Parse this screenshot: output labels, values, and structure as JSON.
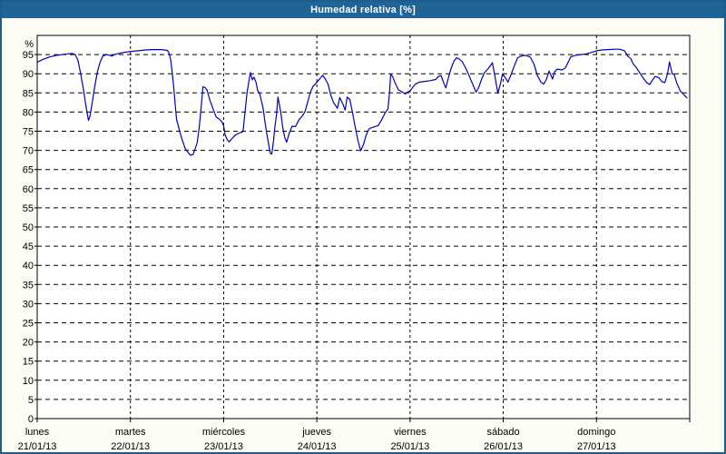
{
  "window": {
    "title": "Humedad relativa [%]"
  },
  "colors": {
    "titlebar_bg": "#1f6497",
    "titlebar_text": "#ffffff",
    "window_border": "#1d5c8c",
    "page_bg": "#fcfcf4",
    "plot_bg": "#fffffd",
    "grid": "#000000",
    "axis": "#000000",
    "line": "#0000b6"
  },
  "chart_data": {
    "type": "line",
    "title": "Humedad relativa [%]",
    "y_unit_label": "%",
    "ylim": [
      0,
      100
    ],
    "ytick_step": 5,
    "ytick_labels": [
      "0",
      "5",
      "10",
      "15",
      "20",
      "25",
      "30",
      "35",
      "40",
      "45",
      "50",
      "55",
      "60",
      "65",
      "70",
      "75",
      "80",
      "85",
      "90",
      "95"
    ],
    "grid": "dashed",
    "legend": "none",
    "x_hours_total": 168,
    "hours_per_day": 24,
    "x_days": [
      {
        "name": "lunes",
        "date": "21/01/13"
      },
      {
        "name": "martes",
        "date": "22/01/13"
      },
      {
        "name": "miércoles",
        "date": "23/01/13"
      },
      {
        "name": "jueves",
        "date": "24/01/13"
      },
      {
        "name": "viernes",
        "date": "25/01/13"
      },
      {
        "name": "sábado",
        "date": "26/01/13"
      },
      {
        "name": "domingo",
        "date": "27/01/13"
      }
    ],
    "series": [
      {
        "name": "Humedad relativa",
        "color": "#0000b6",
        "points": [
          [
            0,
            93.0
          ],
          [
            1.6,
            93.8
          ],
          [
            3.3,
            94.4
          ],
          [
            5.1,
            94.8
          ],
          [
            7,
            95.1
          ],
          [
            9,
            95.3
          ],
          [
            9.8,
            95.0
          ],
          [
            10.5,
            93.5
          ],
          [
            11.2,
            90.0
          ],
          [
            11.9,
            86.0
          ],
          [
            12.4,
            82.5
          ],
          [
            12.9,
            79.5
          ],
          [
            13.2,
            77.8
          ],
          [
            13.6,
            79.0
          ],
          [
            14.1,
            82.0
          ],
          [
            14.8,
            86.5
          ],
          [
            15.5,
            90.5
          ],
          [
            16.2,
            93.0
          ],
          [
            16.9,
            94.6
          ],
          [
            17.8,
            95.0
          ],
          [
            18.7,
            94.8
          ],
          [
            19.2,
            94.6
          ],
          [
            19.9,
            95.0
          ],
          [
            21,
            95.3
          ],
          [
            22.5,
            95.6
          ],
          [
            24,
            95.8
          ],
          [
            26,
            96.0
          ],
          [
            28,
            96.2
          ],
          [
            30,
            96.3
          ],
          [
            32,
            96.3
          ],
          [
            33.5,
            96.1
          ],
          [
            33.9,
            95.5
          ],
          [
            34.4,
            93.5
          ],
          [
            34.8,
            90.0
          ],
          [
            35.2,
            86.0
          ],
          [
            35.6,
            81.0
          ],
          [
            35.9,
            78.0
          ],
          [
            36.3,
            76.5
          ],
          [
            36.8,
            74.5
          ],
          [
            37.4,
            72.5
          ],
          [
            38.1,
            70.5
          ],
          [
            38.8,
            69.5
          ],
          [
            39.5,
            68.7
          ],
          [
            40.2,
            69.0
          ],
          [
            41.2,
            72.0
          ],
          [
            41.7,
            76.0
          ],
          [
            42.1,
            80.0
          ],
          [
            42.4,
            83.5
          ],
          [
            42.7,
            86.6
          ],
          [
            43.2,
            86.4
          ],
          [
            43.7,
            85.8
          ],
          [
            44.5,
            83.0
          ],
          [
            45.4,
            80.5
          ],
          [
            46.1,
            78.7
          ],
          [
            46.8,
            78.2
          ],
          [
            47.5,
            77.5
          ],
          [
            48,
            76.5
          ],
          [
            48.4,
            74.0
          ],
          [
            48.9,
            72.8
          ],
          [
            49.4,
            72.2
          ],
          [
            50.1,
            73.0
          ],
          [
            51,
            74.0
          ],
          [
            52,
            74.5
          ],
          [
            53,
            74.9
          ],
          [
            54,
            84.8
          ],
          [
            54.5,
            88.0
          ],
          [
            54.9,
            90.3
          ],
          [
            55.4,
            88.4
          ],
          [
            55.8,
            89.1
          ],
          [
            56.3,
            87.9
          ],
          [
            56.8,
            85.5
          ],
          [
            57.3,
            84.8
          ],
          [
            58.2,
            80.8
          ],
          [
            58.6,
            77.7
          ],
          [
            59.1,
            74.4
          ],
          [
            59.6,
            71.5
          ],
          [
            60,
            69.3
          ],
          [
            60.4,
            69.0
          ],
          [
            60.8,
            72.1
          ],
          [
            61.2,
            76.1
          ],
          [
            61.6,
            79.2
          ],
          [
            62,
            83.9
          ],
          [
            62.7,
            80.1
          ],
          [
            63.2,
            76.1
          ],
          [
            63.7,
            73.5
          ],
          [
            64.2,
            72.1
          ],
          [
            64.9,
            74.5
          ],
          [
            65.6,
            76.3
          ],
          [
            66.5,
            76.2
          ],
          [
            67.4,
            78.0
          ],
          [
            68.2,
            78.9
          ],
          [
            68.9,
            80.0
          ],
          [
            69.6,
            82.5
          ],
          [
            70.3,
            85.1
          ],
          [
            71,
            86.7
          ],
          [
            71.7,
            87.4
          ],
          [
            72,
            87.8
          ],
          [
            72.7,
            88.6
          ],
          [
            73.5,
            89.6
          ],
          [
            74.2,
            88.6
          ],
          [
            74.9,
            87.2
          ],
          [
            75.6,
            84.4
          ],
          [
            76.3,
            82.5
          ],
          [
            77.3,
            81.0
          ],
          [
            77.9,
            83.8
          ],
          [
            78.6,
            82.3
          ],
          [
            79.3,
            80.5
          ],
          [
            79.8,
            83.9
          ],
          [
            80.5,
            83.3
          ],
          [
            81.2,
            79.8
          ],
          [
            81.9,
            76.0
          ],
          [
            82.6,
            72.5
          ],
          [
            83.3,
            69.9
          ],
          [
            84,
            71.5
          ],
          [
            84.7,
            74.0
          ],
          [
            85.4,
            75.6
          ],
          [
            86.1,
            75.9
          ],
          [
            87,
            76.2
          ],
          [
            87.8,
            76.5
          ],
          [
            88.7,
            78.0
          ],
          [
            89.6,
            79.8
          ],
          [
            90.3,
            80.8
          ],
          [
            90.7,
            85.0
          ],
          [
            91,
            89.8
          ],
          [
            91.5,
            89.3
          ],
          [
            92.2,
            87.5
          ],
          [
            93,
            85.8
          ],
          [
            93.9,
            85.3
          ],
          [
            94.8,
            84.7
          ],
          [
            95.5,
            85.3
          ],
          [
            96,
            85.5
          ],
          [
            96.7,
            86.5
          ],
          [
            97.4,
            87.3
          ],
          [
            98.4,
            87.8
          ],
          [
            99.8,
            88.0
          ],
          [
            101.2,
            88.2
          ],
          [
            102.6,
            88.5
          ],
          [
            103.3,
            89.3
          ],
          [
            104,
            89.5
          ],
          [
            104.7,
            87.5
          ],
          [
            105.2,
            86.3
          ],
          [
            105.9,
            89.0
          ],
          [
            106.6,
            91.5
          ],
          [
            107.3,
            93.3
          ],
          [
            108,
            94.2
          ],
          [
            108.7,
            93.8
          ],
          [
            109.4,
            93.2
          ],
          [
            110.3,
            91.5
          ],
          [
            111.2,
            89.5
          ],
          [
            112.1,
            87.3
          ],
          [
            113,
            85.2
          ],
          [
            113.7,
            86.5
          ],
          [
            114.4,
            88.5
          ],
          [
            115.1,
            90.2
          ],
          [
            116,
            91.2
          ],
          [
            116.9,
            92.4
          ],
          [
            117.2,
            92.9
          ],
          [
            117.9,
            89.0
          ],
          [
            118.6,
            84.9
          ],
          [
            119.3,
            87.5
          ],
          [
            119.8,
            90.0
          ],
          [
            120.5,
            89.0
          ],
          [
            121.2,
            87.8
          ],
          [
            121.9,
            89.5
          ],
          [
            122.8,
            92.0
          ],
          [
            123.7,
            94.2
          ],
          [
            124.6,
            94.6
          ],
          [
            125.8,
            94.8
          ],
          [
            127,
            94.3
          ],
          [
            127.9,
            92.5
          ],
          [
            128.8,
            89.5
          ],
          [
            129.7,
            87.8
          ],
          [
            130.4,
            87.3
          ],
          [
            131.1,
            88.5
          ],
          [
            131.8,
            90.7
          ],
          [
            132.7,
            88.6
          ],
          [
            133.2,
            90.5
          ],
          [
            133.9,
            91.2
          ],
          [
            135.1,
            91.0
          ],
          [
            136,
            91.5
          ],
          [
            136.7,
            93.0
          ],
          [
            137.4,
            94.4
          ],
          [
            138.6,
            94.8
          ],
          [
            140,
            95.0
          ],
          [
            141.4,
            95.2
          ],
          [
            142.8,
            95.6
          ],
          [
            144,
            96.0
          ],
          [
            145.4,
            96.2
          ],
          [
            147,
            96.3
          ],
          [
            148.6,
            96.4
          ],
          [
            150,
            96.4
          ],
          [
            151.2,
            96.0
          ],
          [
            152.1,
            94.5
          ],
          [
            152.8,
            94.0
          ],
          [
            153.5,
            92.5
          ],
          [
            154.2,
            91.7
          ],
          [
            155.1,
            90.3
          ],
          [
            156,
            88.9
          ],
          [
            157,
            87.6
          ],
          [
            157.7,
            87.2
          ],
          [
            158.4,
            88.3
          ],
          [
            159.1,
            89.3
          ],
          [
            160,
            89.0
          ],
          [
            160.9,
            87.9
          ],
          [
            161.6,
            87.7
          ],
          [
            162.3,
            90.0
          ],
          [
            162.8,
            93.1
          ],
          [
            163.5,
            90.0
          ],
          [
            164,
            89.8
          ],
          [
            164.7,
            87.5
          ],
          [
            165.6,
            85.5
          ],
          [
            166.5,
            84.5
          ],
          [
            167.3,
            83.7
          ]
        ]
      }
    ]
  }
}
